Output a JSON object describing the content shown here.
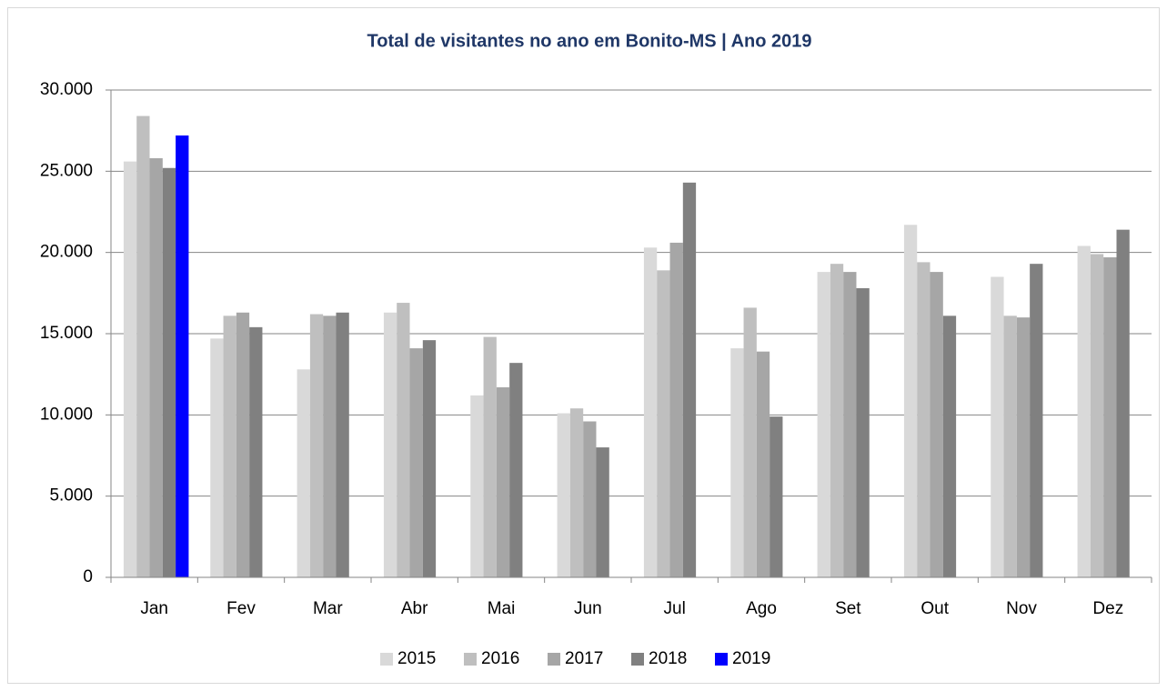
{
  "chart_data": {
    "type": "bar",
    "title": "Total de visitantes no ano em Bonito-MS | Ano 2019",
    "categories": [
      "Jan",
      "Fev",
      "Mar",
      "Abr",
      "Mai",
      "Jun",
      "Jul",
      "Ago",
      "Set",
      "Out",
      "Nov",
      "Dez"
    ],
    "series": [
      {
        "name": "2015",
        "color": "#d9d9d9",
        "values": [
          25600,
          14700,
          12800,
          16300,
          11200,
          10100,
          20300,
          14100,
          18800,
          21700,
          18500,
          20400
        ]
      },
      {
        "name": "2016",
        "color": "#bfbfbf",
        "values": [
          28400,
          16100,
          16200,
          16900,
          14800,
          10400,
          18900,
          16600,
          19300,
          19400,
          16100,
          19900
        ]
      },
      {
        "name": "2017",
        "color": "#a6a6a6",
        "values": [
          25800,
          16300,
          16100,
          14100,
          11700,
          9600,
          20600,
          13900,
          18800,
          18800,
          16000,
          19700
        ]
      },
      {
        "name": "2018",
        "color": "#808080",
        "values": [
          25200,
          15400,
          16300,
          14600,
          13200,
          8000,
          24300,
          9900,
          17800,
          16100,
          19300,
          21400
        ]
      },
      {
        "name": "2019",
        "color": "#0000ff",
        "values": [
          27200,
          null,
          null,
          null,
          null,
          null,
          null,
          null,
          null,
          null,
          null,
          null
        ]
      }
    ],
    "ylim": [
      0,
      30000
    ],
    "yticks": [
      0,
      {
        "value": 5000,
        "label": "5.000"
      },
      {
        "value": 10000,
        "label": "10.000"
      },
      {
        "value": 15000,
        "label": "15.000"
      },
      {
        "value": 20000,
        "label": "20.000"
      },
      {
        "value": 25000,
        "label": "25.000"
      },
      {
        "value": 30000,
        "label": "30.000"
      }
    ],
    "grid": true,
    "legend": "bottom"
  }
}
